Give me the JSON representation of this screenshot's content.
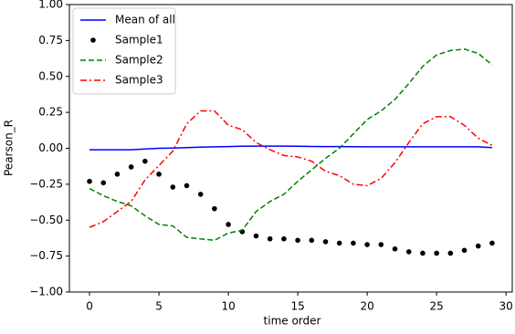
{
  "chart_data": {
    "type": "line",
    "x_label": "time order",
    "y_label": "Pearson_R",
    "x": [
      0,
      1,
      2,
      3,
      4,
      5,
      6,
      7,
      8,
      9,
      10,
      11,
      12,
      13,
      14,
      15,
      16,
      17,
      18,
      19,
      20,
      21,
      22,
      23,
      24,
      25,
      26,
      27,
      28,
      29
    ],
    "series": [
      {
        "name": "Mean of all",
        "color": "#0000ff",
        "style": "solid",
        "values": [
          -0.01,
          -0.01,
          -0.01,
          -0.01,
          -0.005,
          0,
          0.002,
          0.005,
          0.008,
          0.01,
          0.012,
          0.014,
          0.015,
          0.015,
          0.015,
          0.014,
          0.013,
          0.012,
          0.012,
          0.011,
          0.01,
          0.01,
          0.01,
          0.01,
          0.01,
          0.01,
          0.01,
          0.01,
          0.01,
          0.005
        ]
      },
      {
        "name": "Sample1",
        "color": "#000000",
        "style": "dots",
        "values": [
          -0.23,
          -0.24,
          -0.18,
          -0.13,
          -0.09,
          -0.18,
          -0.27,
          -0.26,
          -0.32,
          -0.42,
          -0.53,
          -0.58,
          -0.61,
          -0.63,
          -0.63,
          -0.64,
          -0.64,
          -0.65,
          -0.66,
          -0.66,
          -0.67,
          -0.67,
          -0.7,
          -0.72,
          -0.73,
          -0.73,
          -0.73,
          -0.71,
          -0.68,
          -0.66
        ]
      },
      {
        "name": "Sample2",
        "color": "#008000",
        "style": "dashed",
        "values": [
          -0.28,
          -0.33,
          -0.37,
          -0.4,
          -0.47,
          -0.53,
          -0.54,
          -0.62,
          -0.63,
          -0.64,
          -0.59,
          -0.57,
          -0.44,
          -0.37,
          -0.32,
          -0.23,
          -0.15,
          -0.07,
          0,
          0.1,
          0.2,
          0.26,
          0.34,
          0.45,
          0.57,
          0.65,
          0.68,
          0.69,
          0.66,
          0.58
        ]
      },
      {
        "name": "Sample3",
        "color": "#ff0000",
        "style": "dashdot",
        "values": [
          -0.55,
          -0.51,
          -0.44,
          -0.37,
          -0.22,
          -0.12,
          -0.02,
          0.17,
          0.26,
          0.26,
          0.16,
          0.13,
          0.04,
          -0.01,
          -0.05,
          -0.06,
          -0.09,
          -0.16,
          -0.19,
          -0.25,
          -0.26,
          -0.21,
          -0.1,
          0.04,
          0.17,
          0.22,
          0.22,
          0.16,
          0.07,
          0.02
        ]
      }
    ],
    "xlim": [
      -1.45,
      30.45
    ],
    "xticks": [
      0,
      5,
      10,
      15,
      20,
      25,
      30
    ],
    "ylim": [
      -1,
      1
    ],
    "yticks": [
      {
        "value": 1,
        "label": "1.00"
      },
      {
        "value": 0.75,
        "label": "0.75"
      },
      {
        "value": 0.5,
        "label": "0.50"
      },
      {
        "value": 0.25,
        "label": "0.25"
      },
      {
        "value": 0,
        "label": "0.00"
      },
      {
        "value": -0.25,
        "label": "−0.25"
      },
      {
        "value": -0.5,
        "label": "−0.50"
      },
      {
        "value": -0.75,
        "label": "−0.75"
      },
      {
        "value": -1,
        "label": "−1.00"
      }
    ],
    "grid": false,
    "legend": "upper-left"
  }
}
